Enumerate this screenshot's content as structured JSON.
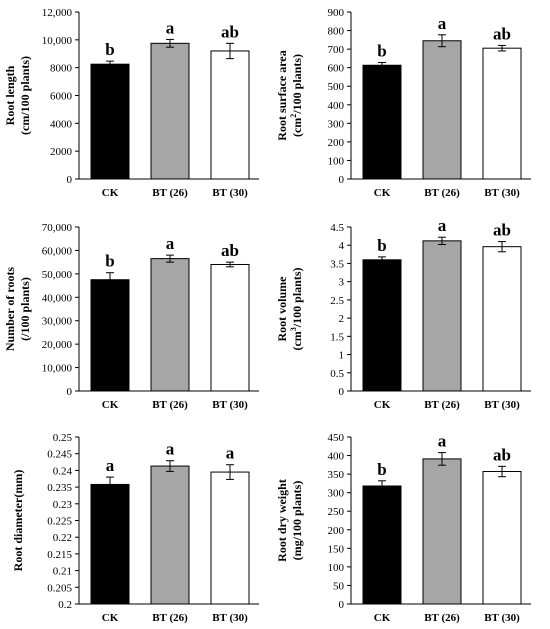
{
  "chart_data": [
    {
      "type": "bar",
      "categories": [
        "CK",
        "BT (26)",
        "BT (30)"
      ],
      "ylabel_lines": [
        [
          "Root length"
        ],
        [
          "(cm/100 plants)"
        ]
      ],
      "ylim": [
        0,
        12000
      ],
      "yticks": [
        0,
        2000,
        4000,
        6000,
        8000,
        10000,
        12000
      ],
      "tick_labels": [
        "0",
        "2000",
        "4000",
        "6000",
        "8000",
        "10,000",
        "12,000"
      ],
      "values": [
        8250,
        9750,
        9200
      ],
      "errors": [
        220,
        280,
        550
      ],
      "significance": [
        "b",
        "a",
        "ab"
      ]
    },
    {
      "type": "bar",
      "categories": [
        "CK",
        "BT (26)",
        "BT (30)"
      ],
      "ylabel_lines": [
        [
          "Root surface area"
        ],
        [
          "(cm",
          "2",
          "/100 plants)"
        ]
      ],
      "ylim": [
        0,
        900
      ],
      "yticks": [
        0,
        100,
        200,
        300,
        400,
        500,
        600,
        700,
        800,
        900
      ],
      "tick_labels": [
        "0",
        "100",
        "200",
        "300",
        "400",
        "500",
        "600",
        "700",
        "800",
        "900"
      ],
      "values": [
        613,
        745,
        705
      ],
      "errors": [
        15,
        32,
        15
      ],
      "significance": [
        "b",
        "a",
        "ab"
      ]
    },
    {
      "type": "bar",
      "categories": [
        "CK",
        "BT (26)",
        "BT (30)"
      ],
      "ylabel_lines": [
        [
          "Number of roots"
        ],
        [
          "(/100 plants)"
        ]
      ],
      "ylim": [
        0,
        70000
      ],
      "yticks": [
        0,
        10000,
        20000,
        30000,
        40000,
        50000,
        60000,
        70000
      ],
      "tick_labels": [
        "0",
        "10,000",
        "20,000",
        "30,000",
        "40,000",
        "50,000",
        "60,000",
        "70,000"
      ],
      "values": [
        47500,
        56500,
        54000
      ],
      "errors": [
        3000,
        1500,
        1000
      ],
      "significance": [
        "b",
        "a",
        "ab"
      ]
    },
    {
      "type": "bar",
      "categories": [
        "CK",
        "BT (26)",
        "BT (30)"
      ],
      "ylabel_lines": [
        [
          "Root volume"
        ],
        [
          "(cm",
          "3",
          "/100 plants)"
        ]
      ],
      "ylim": [
        0,
        4.5
      ],
      "yticks": [
        0,
        0.5,
        1,
        1.5,
        2,
        2.5,
        3,
        3.5,
        4,
        4.5
      ],
      "tick_labels": [
        "0",
        "0.5",
        "1",
        "1.5",
        "2",
        "2.5",
        "3",
        "3.5",
        "4",
        "4.5"
      ],
      "values": [
        3.6,
        4.12,
        3.96
      ],
      "errors": [
        0.08,
        0.1,
        0.14
      ],
      "significance": [
        "b",
        "a",
        "ab"
      ]
    },
    {
      "type": "bar",
      "categories": [
        "CK",
        "BT (26)",
        "BT (30)"
      ],
      "ylabel_lines": [
        [
          "Root diameter(mm)"
        ]
      ],
      "ylim": [
        0.2,
        0.25
      ],
      "yticks": [
        0.2,
        0.205,
        0.21,
        0.215,
        0.22,
        0.225,
        0.23,
        0.235,
        0.24,
        0.245,
        0.25
      ],
      "tick_labels": [
        "0.2",
        "0.205",
        "0.21",
        "0.215",
        "0.22",
        "0.225",
        "0.23",
        "0.235",
        "0.24",
        "0.245",
        "0.25"
      ],
      "values": [
        0.2358,
        0.2413,
        0.2395
      ],
      "errors": [
        0.0022,
        0.0016,
        0.0022
      ],
      "significance": [
        "a",
        "a",
        "a"
      ]
    },
    {
      "type": "bar",
      "categories": [
        "CK",
        "BT (26)",
        "BT (30)"
      ],
      "ylabel_lines": [
        [
          "Root dry weight"
        ],
        [
          "(mg/100 plants)"
        ]
      ],
      "ylim": [
        0,
        450
      ],
      "yticks": [
        0,
        50,
        100,
        150,
        200,
        250,
        300,
        350,
        400,
        450
      ],
      "tick_labels": [
        "0",
        "50",
        "100",
        "150",
        "200",
        "250",
        "300",
        "350",
        "400",
        "450"
      ],
      "values": [
        318,
        391,
        357
      ],
      "errors": [
        14,
        17,
        14
      ],
      "significance": [
        "b",
        "a",
        "ab"
      ]
    }
  ],
  "colors": {
    "bar_fills": [
      "#000000",
      "#a6a6a6",
      "#ffffff"
    ],
    "outline": "#000000"
  }
}
